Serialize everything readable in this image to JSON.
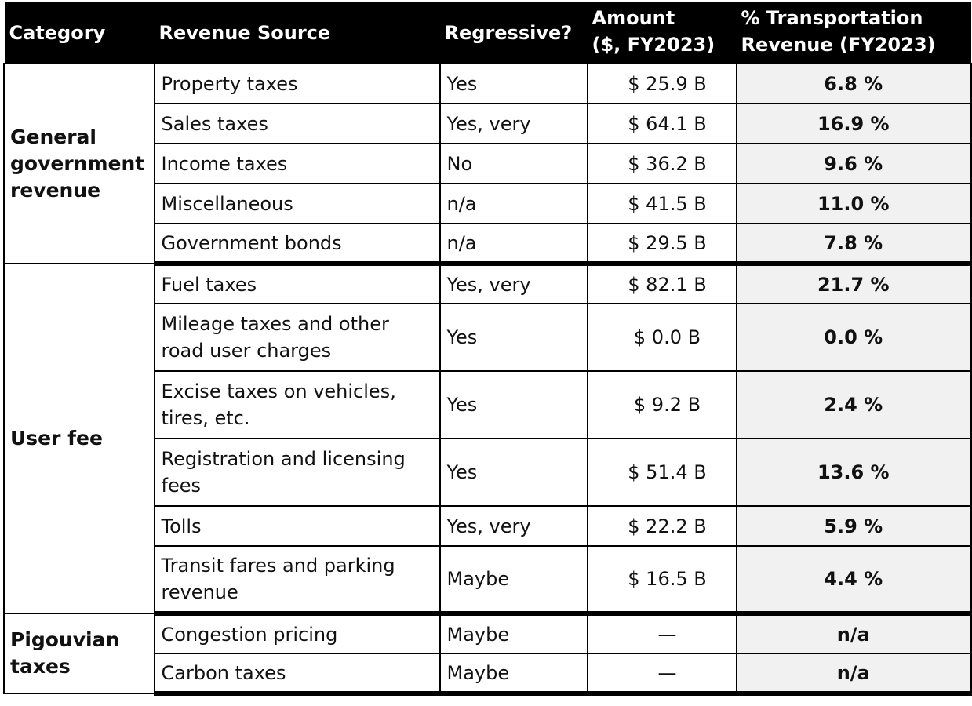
{
  "table": {
    "headers": {
      "category": "Category",
      "revenue_source": "Revenue Source",
      "regressive": "Regressive?",
      "amount_line1": "Amount",
      "amount_line2": "($, FY2023)",
      "pct_line1": "% Transportation",
      "pct_line2": "Revenue (FY2023)"
    },
    "groups": [
      {
        "category": "General government revenue",
        "rows": [
          {
            "source": "Property taxes",
            "regressive": "Yes",
            "amount": "$ 25.9 B",
            "pct": "6.8 %"
          },
          {
            "source": "Sales taxes",
            "regressive": "Yes, very",
            "amount": "$ 64.1 B",
            "pct": "16.9 %"
          },
          {
            "source": "Income taxes",
            "regressive": "No",
            "amount": "$ 36.2 B",
            "pct": "9.6 %"
          },
          {
            "source": "Miscellaneous",
            "regressive": "n/a",
            "amount": "$ 41.5 B",
            "pct": "11.0 %"
          },
          {
            "source": "Government bonds",
            "regressive": "n/a",
            "amount": "$ 29.5 B",
            "pct": "7.8 %"
          }
        ]
      },
      {
        "category": "User fee",
        "rows": [
          {
            "source": "Fuel taxes",
            "regressive": "Yes, very",
            "amount": "$ 82.1 B",
            "pct": "21.7 %"
          },
          {
            "source": "Mileage taxes and other road user charges",
            "regressive": "Yes",
            "amount": "$ 0.0 B",
            "pct": "0.0 %"
          },
          {
            "source": "Excise taxes on vehicles, tires, etc.",
            "regressive": "Yes",
            "amount": "$ 9.2 B",
            "pct": "2.4 %"
          },
          {
            "source": "Registration and licensing fees",
            "regressive": "Yes",
            "amount": "$ 51.4 B",
            "pct": "13.6 %"
          },
          {
            "source": "Tolls",
            "regressive": "Yes, very",
            "amount": "$ 22.2 B",
            "pct": "5.9 %"
          },
          {
            "source": "Transit fares and parking revenue",
            "regressive": "Maybe",
            "amount": "$ 16.5 B",
            "pct": "4.4 %"
          }
        ]
      },
      {
        "category": "Pigouvian taxes",
        "rows": [
          {
            "source": "Congestion pricing",
            "regressive": "Maybe",
            "amount": "—",
            "pct": "n/a"
          },
          {
            "source": "Carbon taxes",
            "regressive": "Maybe",
            "amount": "—",
            "pct": "n/a"
          }
        ]
      }
    ]
  }
}
